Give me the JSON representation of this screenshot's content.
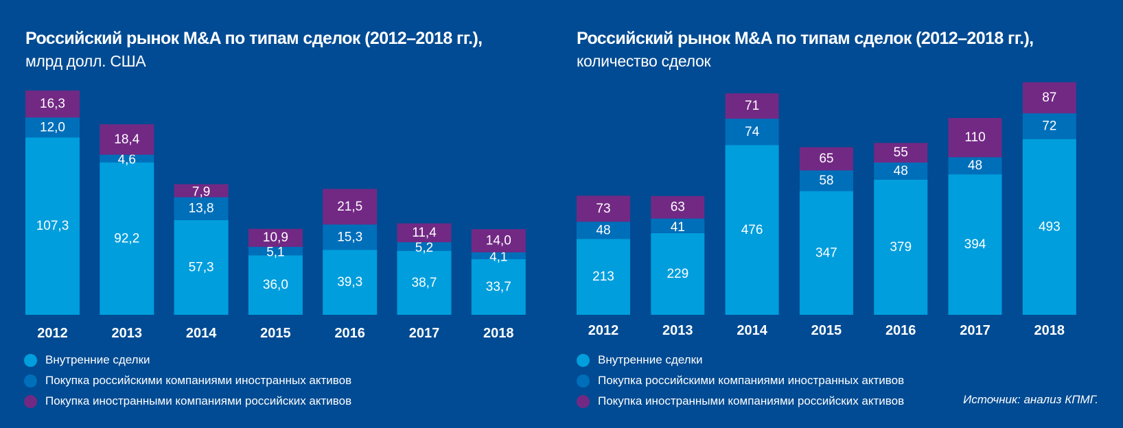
{
  "colors": {
    "background": "#004B93",
    "domestic": "#009EDD",
    "outbound": "#006FBA",
    "inbound": "#722984"
  },
  "legend": [
    {
      "key": "domestic",
      "label": "Внутренние сделки",
      "color": "#009EDD"
    },
    {
      "key": "outbound",
      "label": "Покупка российскими компаниями иностранных активов",
      "color": "#006FBA"
    },
    {
      "key": "inbound",
      "label": "Покупка иностранными компаниями российских активов",
      "color": "#722984"
    }
  ],
  "source": "Источник: анализ КПМГ.",
  "chart_data": [
    {
      "type": "bar",
      "stacked": true,
      "title": "Российский рынок M&A по типам сделок (2012–2018 гг.),",
      "subtitle": "млрд долл. США",
      "xlabel": "",
      "ylabel": "млрд долл. США",
      "grid": false,
      "legend_position": "bottom-left",
      "categories": [
        "2012",
        "2013",
        "2014",
        "2015",
        "2016",
        "2017",
        "2018"
      ],
      "series": [
        {
          "name": "Внутренние сделки",
          "key": "domestic",
          "values": [
            107.3,
            92.2,
            57.3,
            36.0,
            39.3,
            38.7,
            33.7
          ],
          "labels": [
            "107,3",
            "92,2",
            "57,3",
            "36,0",
            "39,3",
            "38,7",
            "33,7"
          ]
        },
        {
          "name": "Покупка российскими компаниями иностранных активов",
          "key": "outbound",
          "values": [
            12.0,
            4.6,
            13.8,
            5.1,
            15.3,
            5.2,
            4.1
          ],
          "labels": [
            "12,0",
            "4,6",
            "13,8",
            "5,1",
            "15,3",
            "5,2",
            "4,1"
          ]
        },
        {
          "name": "Покупка иностранными компаниями российских активов",
          "key": "inbound",
          "values": [
            16.3,
            18.4,
            7.9,
            10.9,
            21.5,
            11.4,
            14.0
          ],
          "labels": [
            "16,3",
            "18,4",
            "7,9",
            "10,9",
            "21,5",
            "11,4",
            "14,0"
          ]
        }
      ],
      "ylim": [
        0,
        135.6
      ]
    },
    {
      "type": "bar",
      "stacked": true,
      "title": "Российский рынок M&A по типам сделок (2012–2018 гг.),",
      "subtitle": "количество сделок",
      "xlabel": "",
      "ylabel": "количество сделок",
      "grid": false,
      "legend_position": "bottom-left",
      "categories": [
        "2012",
        "2013",
        "2014",
        "2015",
        "2016",
        "2017",
        "2018"
      ],
      "series": [
        {
          "name": "Внутренние сделки",
          "key": "domestic",
          "values": [
            213,
            229,
            476,
            347,
            379,
            394,
            493
          ],
          "labels": [
            "213",
            "229",
            "476",
            "347",
            "379",
            "394",
            "493"
          ]
        },
        {
          "name": "Покупка российскими компаниями иностранных активов",
          "key": "outbound",
          "values": [
            48,
            41,
            74,
            58,
            48,
            48,
            72
          ],
          "labels": [
            "48",
            "41",
            "74",
            "58",
            "48",
            "48",
            "72"
          ]
        },
        {
          "name": "Покупка иностранными компаниями российских активов",
          "key": "inbound",
          "values": [
            73,
            63,
            71,
            65,
            55,
            110,
            87
          ],
          "labels": [
            "73",
            "63",
            "71",
            "65",
            "55",
            "110",
            "87"
          ]
        }
      ],
      "ylim": [
        0,
        652
      ]
    }
  ]
}
